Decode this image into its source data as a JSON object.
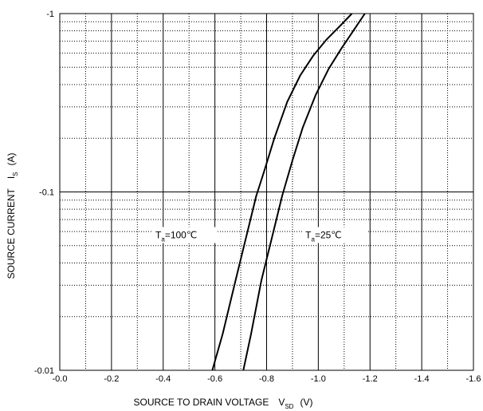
{
  "chart_data": {
    "type": "line",
    "xlabel": {
      "main": "SOURCE TO DRAIN VOLTAGE",
      "symbol": "V",
      "subscript": "SD",
      "unit": "(V)"
    },
    "ylabel": {
      "main": "SOURCE CURRENT",
      "symbol": "I",
      "subscript": "S",
      "unit": "(A)"
    },
    "x_ticks": [
      "-0.0",
      "-0.2",
      "-0.4",
      "-0.6",
      "-0.8",
      "-1.0",
      "-1.2",
      "-1.4",
      "-1.6"
    ],
    "y_ticks": [
      "-0.01",
      "-0.1",
      "-1"
    ],
    "xlim": [
      0,
      -1.6
    ],
    "ylim": [
      -0.01,
      -1
    ],
    "y_scale": "log",
    "grid": "dotted minor, solid major",
    "annotations": [
      {
        "text_main": "T",
        "text_sub": "a",
        "text_rest": "=100℃",
        "x": -0.37,
        "y": -0.055
      },
      {
        "text_main": "T",
        "text_sub": "a",
        "text_rest": "=25℃",
        "x": -0.95,
        "y": -0.055
      }
    ],
    "series": [
      {
        "x": [
          -0.59,
          -0.63,
          -0.68,
          -0.72,
          -0.76,
          -0.79,
          -0.83,
          -0.88,
          -0.93,
          -0.98,
          -1.03,
          -1.09,
          -1.13
        ],
        "y": [
          -0.01,
          -0.016,
          -0.032,
          -0.055,
          -0.095,
          -0.13,
          -0.2,
          -0.32,
          -0.45,
          -0.58,
          -0.71,
          -0.87,
          -1.0
        ]
      },
      {
        "x": [
          -0.71,
          -0.74,
          -0.78,
          -0.82,
          -0.86,
          -0.9,
          -0.94,
          -0.99,
          -1.04,
          -1.09,
          -1.14,
          -1.18
        ],
        "y": [
          -0.01,
          -0.016,
          -0.032,
          -0.055,
          -0.095,
          -0.15,
          -0.23,
          -0.35,
          -0.49,
          -0.64,
          -0.82,
          -1.0
        ]
      }
    ]
  }
}
